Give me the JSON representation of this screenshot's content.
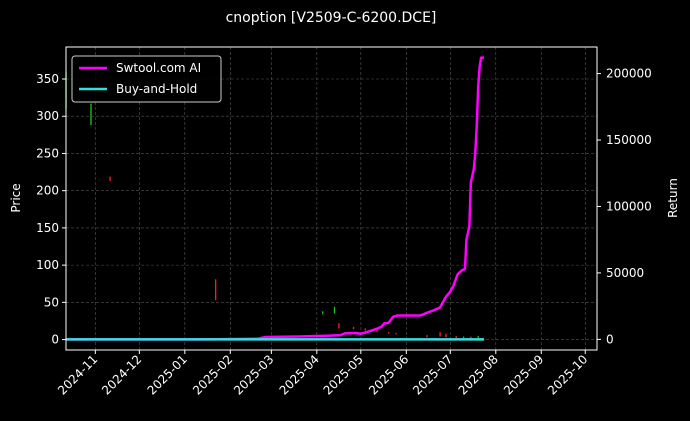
{
  "chart_data": {
    "type": "line",
    "title": "cnoption [V2509-C-6200.DCE]",
    "ylabel_left": "Price",
    "ylabel_right": "Return",
    "x_ticks": [
      "2024-11",
      "2024-12",
      "2025-01",
      "2025-02",
      "2025-03",
      "2025-04",
      "2025-05",
      "2025-06",
      "2025-07",
      "2025-08",
      "2025-09",
      "2025-10"
    ],
    "x_range": [
      "2024-10-12",
      "2025-10-09"
    ],
    "y_left_ticks": [
      "0",
      "50",
      "100",
      "150",
      "200",
      "250",
      "300",
      "350"
    ],
    "y_left_range": [
      -14,
      393
    ],
    "y_right_ticks": [
      "0",
      "50000",
      "100000",
      "150000",
      "200000"
    ],
    "y_right_range": [
      -8000,
      220000
    ],
    "grid": true,
    "legend_position": "top-left",
    "legend": [
      {
        "name": "Swtool.com AI",
        "color": "#ff00ff"
      },
      {
        "name": "Buy-and-Hold",
        "color": "#33e0e0"
      }
    ],
    "series": [
      {
        "name": "Swtool.com AI",
        "axis": "right",
        "color": "#ff00ff",
        "points": [
          [
            "2024-10-12",
            0
          ],
          [
            "2024-12-01",
            0
          ],
          [
            "2025-01-15",
            0
          ],
          [
            "2025-02-20",
            500
          ],
          [
            "2025-02-25",
            1800
          ],
          [
            "2025-03-20",
            2200
          ],
          [
            "2025-04-10",
            2800
          ],
          [
            "2025-04-17",
            3200
          ],
          [
            "2025-04-20",
            4500
          ],
          [
            "2025-04-28",
            4800
          ],
          [
            "2025-05-01",
            4200
          ],
          [
            "2025-05-05",
            5500
          ],
          [
            "2025-05-08",
            6500
          ],
          [
            "2025-05-12",
            8000
          ],
          [
            "2025-05-15",
            9500
          ],
          [
            "2025-05-17",
            12000
          ],
          [
            "2025-05-20",
            12500
          ],
          [
            "2025-05-23",
            17000
          ],
          [
            "2025-05-26",
            18000
          ],
          [
            "2025-05-28",
            18000
          ],
          [
            "2025-06-10",
            18000
          ],
          [
            "2025-06-12",
            18500
          ],
          [
            "2025-06-15",
            20000
          ],
          [
            "2025-06-20",
            22000
          ],
          [
            "2025-06-24",
            24000
          ],
          [
            "2025-06-26",
            28000
          ],
          [
            "2025-06-28",
            32000
          ],
          [
            "2025-07-01",
            36000
          ],
          [
            "2025-07-03",
            40000
          ],
          [
            "2025-07-06",
            49000
          ],
          [
            "2025-07-09",
            52000
          ],
          [
            "2025-07-11",
            53000
          ],
          [
            "2025-07-12",
            75000
          ],
          [
            "2025-07-13",
            80000
          ],
          [
            "2025-07-14",
            85000
          ],
          [
            "2025-07-15",
            118000
          ],
          [
            "2025-07-17",
            128000
          ],
          [
            "2025-07-18",
            140000
          ],
          [
            "2025-07-19",
            160000
          ],
          [
            "2025-07-20",
            190000
          ],
          [
            "2025-07-21",
            205000
          ],
          [
            "2025-07-22",
            212000
          ],
          [
            "2025-07-24",
            212000
          ]
        ]
      },
      {
        "name": "Buy-and-Hold",
        "axis": "right",
        "color": "#33e0e0",
        "points": [
          [
            "2024-10-12",
            0
          ],
          [
            "2025-07-24",
            0
          ]
        ]
      },
      {
        "name": "",
        "axis": "left",
        "type": "candles",
        "candles": [
          [
            "2024-10-12",
            310,
            360,
            "up"
          ],
          [
            "2024-10-29",
            288,
            317,
            "up"
          ],
          [
            "2024-11-11",
            213,
            219,
            "down"
          ],
          [
            "2025-01-22",
            53,
            81,
            "down"
          ],
          [
            "2025-04-05",
            34,
            38,
            "up"
          ],
          [
            "2025-04-13",
            35,
            44,
            "up"
          ],
          [
            "2025-04-16",
            15,
            22,
            "down"
          ],
          [
            "2025-04-26",
            14,
            17,
            "down"
          ],
          [
            "2025-05-04",
            12,
            15,
            "down"
          ],
          [
            "2025-05-12",
            10,
            13,
            "down"
          ],
          [
            "2025-05-20",
            8,
            10,
            "down"
          ],
          [
            "2025-05-25",
            7,
            9,
            "down"
          ],
          [
            "2025-06-15",
            3,
            6,
            "down"
          ],
          [
            "2025-06-24",
            4,
            10,
            "down"
          ],
          [
            "2025-06-28",
            3,
            8,
            "down"
          ],
          [
            "2025-07-05",
            2,
            5,
            "down"
          ],
          [
            "2025-07-10",
            2,
            4,
            "up"
          ],
          [
            "2025-07-15",
            1,
            4,
            "down"
          ],
          [
            "2025-07-20",
            2,
            5,
            "up"
          ]
        ]
      }
    ]
  }
}
